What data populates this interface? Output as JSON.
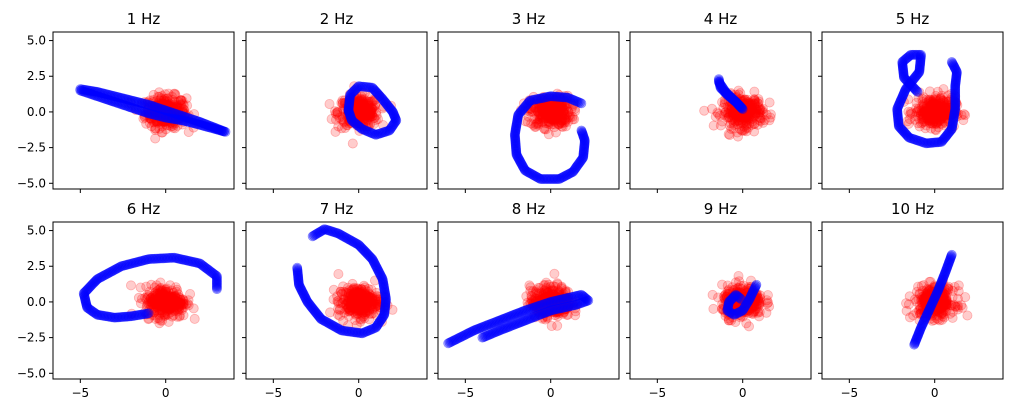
{
  "chart_data": {
    "type": "scatter",
    "layout": {
      "rows": 2,
      "cols": 5,
      "sharex": true,
      "sharey": true
    },
    "xlim": [
      -6.6,
      4.0
    ],
    "ylim": [
      -5.4,
      5.6
    ],
    "xticks": [
      -5,
      0
    ],
    "xtick_labels": [
      "−5",
      "0"
    ],
    "yticks": [
      -5.0,
      -2.5,
      0.0,
      2.5,
      5.0
    ],
    "ytick_labels": [
      "−5.0",
      "−2.5",
      "0.0",
      "2.5",
      "5.0"
    ],
    "colors": {
      "noise": "#ff0000",
      "signal": "#0000ff"
    },
    "noise_cloud": {
      "center": [
        0,
        0
      ],
      "spread_x": 0.6,
      "spread_y": 0.55,
      "alpha": 0.2
    },
    "panels": [
      {
        "title": "1 Hz",
        "signal": [
          [
            -5,
            1.6
          ],
          [
            -4,
            1.4
          ],
          [
            -3,
            1.1
          ],
          [
            -2,
            0.8
          ],
          [
            -1,
            0.5
          ],
          [
            0,
            0.1
          ],
          [
            1,
            -0.3
          ],
          [
            2,
            -0.7
          ],
          [
            3.5,
            -1.4
          ],
          [
            2,
            -0.9
          ],
          [
            1,
            -0.6
          ],
          [
            0,
            -0.4
          ],
          [
            -1,
            -0.1
          ],
          [
            -2,
            0.3
          ],
          [
            -3,
            0.7
          ],
          [
            -4,
            1.1
          ],
          [
            -5,
            1.5
          ]
        ]
      },
      {
        "title": "2 Hz",
        "signal": [
          [
            -0.6,
            0.1
          ],
          [
            -0.5,
            1.2
          ],
          [
            0,
            1.8
          ],
          [
            0.8,
            1.7
          ],
          [
            1.4,
            0.9
          ],
          [
            2,
            0
          ],
          [
            2.2,
            -0.6
          ],
          [
            1.8,
            -1.3
          ],
          [
            1,
            -1.6
          ],
          [
            0.2,
            -1.2
          ],
          [
            -0.4,
            -0.6
          ],
          [
            -0.6,
            0.1
          ]
        ]
      },
      {
        "title": "3 Hz",
        "signal": [
          [
            1.8,
            0.6
          ],
          [
            1,
            1
          ],
          [
            0,
            1.1
          ],
          [
            -1.2,
            0.8
          ],
          [
            -1.9,
            -0.2
          ],
          [
            -2.1,
            -1.6
          ],
          [
            -2,
            -3
          ],
          [
            -1.5,
            -4.1
          ],
          [
            -0.6,
            -4.7
          ],
          [
            0.5,
            -4.7
          ],
          [
            1.3,
            -4.2
          ],
          [
            1.9,
            -3.2
          ],
          [
            2,
            -2
          ],
          [
            1.8,
            -1.3
          ]
        ]
      },
      {
        "title": "4 Hz",
        "signal": [
          [
            -1.4,
            2.3
          ],
          [
            -1.3,
            1.7
          ],
          [
            -0.9,
            1.2
          ],
          [
            -0.4,
            0.7
          ],
          [
            0,
            0.2
          ],
          [
            -0.4,
            0.7
          ],
          [
            -1,
            1.4
          ],
          [
            -1.4,
            2.1
          ]
        ]
      },
      {
        "title": "5 Hz",
        "signal": [
          [
            -1,
            1.4
          ],
          [
            -1.8,
            2.4
          ],
          [
            -1.9,
            3.5
          ],
          [
            -1.4,
            4
          ],
          [
            -0.8,
            4
          ],
          [
            -0.9,
            2.8
          ],
          [
            -1.7,
            1.6
          ],
          [
            -2.2,
            0.2
          ],
          [
            -2.1,
            -1
          ],
          [
            -1.5,
            -1.8
          ],
          [
            -0.5,
            -2.2
          ],
          [
            0.4,
            -2.1
          ],
          [
            1,
            -1.2
          ],
          [
            1.2,
            0.2
          ],
          [
            1.2,
            1.8
          ],
          [
            1.3,
            2.8
          ],
          [
            1,
            3.5
          ]
        ]
      },
      {
        "title": "6 Hz",
        "signal": [
          [
            3,
            0.9
          ],
          [
            3,
            1.8
          ],
          [
            2,
            2.7
          ],
          [
            0.5,
            3.1
          ],
          [
            -1,
            3
          ],
          [
            -2.6,
            2.5
          ],
          [
            -4,
            1.6
          ],
          [
            -4.8,
            0.6
          ],
          [
            -4.6,
            -0.4
          ],
          [
            -4,
            -0.9
          ],
          [
            -3,
            -1.1
          ],
          [
            -2,
            -1
          ],
          [
            -1,
            -0.8
          ]
        ]
      },
      {
        "title": "7 Hz",
        "signal": [
          [
            -3.6,
            2.4
          ],
          [
            -3.5,
            1.2
          ],
          [
            -3,
            0
          ],
          [
            -2.2,
            -1.2
          ],
          [
            -1,
            -2
          ],
          [
            0.2,
            -2.2
          ],
          [
            1,
            -1.8
          ],
          [
            1.5,
            -0.9
          ],
          [
            1.6,
            0.2
          ],
          [
            1.4,
            1.6
          ],
          [
            0.8,
            3
          ],
          [
            0,
            4
          ],
          [
            -1.2,
            4.8
          ],
          [
            -2,
            5.1
          ],
          [
            -2.7,
            4.6
          ]
        ]
      },
      {
        "title": "8 Hz",
        "signal": [
          [
            -6,
            -2.9
          ],
          [
            -4.5,
            -2
          ],
          [
            -3,
            -1.3
          ],
          [
            -1.5,
            -0.6
          ],
          [
            0,
            0
          ],
          [
            1.8,
            0.5
          ],
          [
            2.2,
            0.1
          ],
          [
            1.5,
            -0.2
          ],
          [
            0,
            -0.6
          ],
          [
            -1.5,
            -1.3
          ],
          [
            -3,
            -2
          ],
          [
            -4,
            -2.5
          ]
        ]
      },
      {
        "title": "9 Hz",
        "signal": [
          [
            0.8,
            1.2
          ],
          [
            0.4,
            0.2
          ],
          [
            0,
            -0.6
          ],
          [
            -0.5,
            -0.9
          ],
          [
            -0.9,
            -0.6
          ],
          [
            -0.8,
            0
          ],
          [
            -0.4,
            0.5
          ],
          [
            -0.1,
            0.2
          ]
        ]
      },
      {
        "title": "10 Hz",
        "signal": [
          [
            -1.2,
            -3
          ],
          [
            -0.8,
            -1.8
          ],
          [
            -0.3,
            -0.5
          ],
          [
            0.2,
            0.8
          ],
          [
            0.6,
            2
          ],
          [
            1,
            3.3
          ]
        ]
      }
    ]
  }
}
